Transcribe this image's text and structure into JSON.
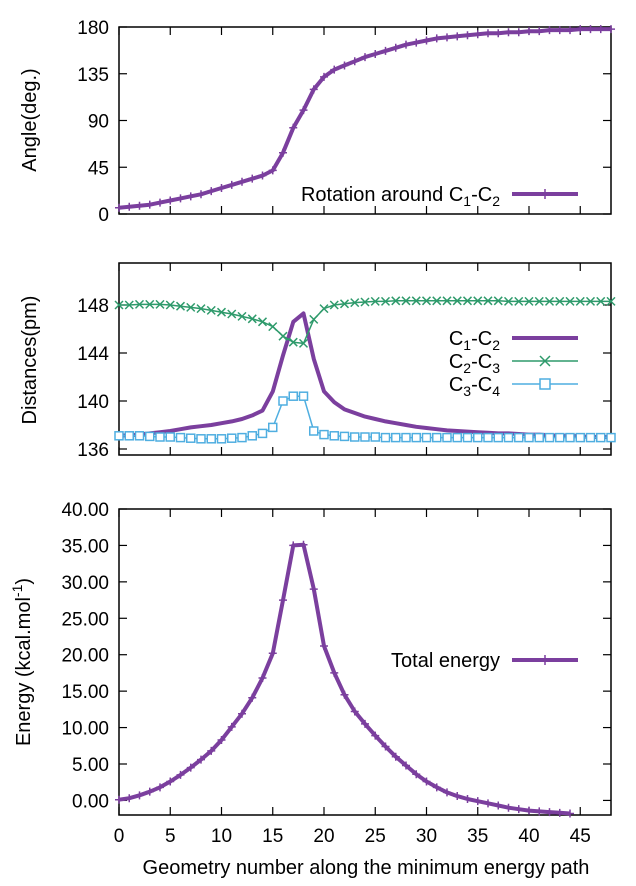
{
  "figure": {
    "xlabel": "Geometry number along the minimum energy path"
  },
  "chart_data": [
    {
      "type": "line",
      "ylabel": "Angle(deg.)",
      "xlim": [
        0,
        48
      ],
      "ylim": [
        0,
        180
      ],
      "xticks": [
        0,
        5,
        10,
        15,
        20,
        25,
        30,
        35,
        40,
        45
      ],
      "yticks": [
        0,
        45,
        90,
        135,
        180
      ],
      "ytick_labels": [
        "0",
        "45",
        "90",
        "135",
        "180"
      ],
      "grid": false,
      "legend_position": "bottom-right",
      "series": [
        {
          "name_main": "Rotation around C",
          "name_sub1": "1",
          "name_mid": "-C",
          "name_sub2": "2",
          "color": "#7b3f9e",
          "marker": "plus",
          "x": [
            0,
            1,
            2,
            3,
            4,
            5,
            6,
            7,
            8,
            9,
            10,
            11,
            12,
            13,
            14,
            15,
            16,
            17,
            18,
            19,
            20,
            21,
            22,
            23,
            24,
            25,
            26,
            27,
            28,
            29,
            30,
            31,
            32,
            33,
            34,
            35,
            36,
            37,
            38,
            39,
            40,
            41,
            42,
            43,
            44,
            45,
            46,
            47,
            48
          ],
          "values": [
            6,
            7,
            8,
            9,
            11,
            13,
            15,
            17,
            19,
            22,
            25,
            28,
            31,
            34,
            37,
            42,
            59,
            83,
            100,
            120,
            132,
            139,
            143,
            147,
            151,
            154,
            157,
            160,
            163,
            165,
            167,
            169,
            170,
            171,
            172,
            173,
            174,
            174,
            175,
            175,
            176,
            176,
            177,
            177,
            177,
            178,
            178,
            178,
            178
          ]
        }
      ]
    },
    {
      "type": "line",
      "ylabel": "Distances(pm)",
      "xlim": [
        0,
        48
      ],
      "ylim": [
        135.5,
        151.5
      ],
      "xticks": [
        0,
        5,
        10,
        15,
        20,
        25,
        30,
        35,
        40,
        45
      ],
      "yticks": [
        136,
        140,
        144,
        148
      ],
      "ytick_labels": [
        "136",
        "140",
        "144",
        "148"
      ],
      "grid": false,
      "legend_position": "right",
      "series": [
        {
          "name_main": "C",
          "name_sub1": "1",
          "name_mid": "-C",
          "name_sub2": "2",
          "color": "#7b3f9e",
          "marker": "none",
          "width": 4,
          "x": [
            0,
            1,
            2,
            3,
            4,
            5,
            6,
            7,
            8,
            9,
            10,
            11,
            12,
            13,
            14,
            15,
            16,
            17,
            18,
            19,
            20,
            21,
            22,
            23,
            24,
            25,
            26,
            27,
            28,
            29,
            30,
            31,
            32,
            33,
            34,
            35,
            36,
            37,
            38,
            39,
            40,
            41,
            42,
            43,
            44,
            45,
            46,
            47,
            48
          ],
          "values": [
            137.1,
            137.15,
            137.2,
            137.3,
            137.4,
            137.5,
            137.65,
            137.8,
            137.9,
            138.0,
            138.15,
            138.3,
            138.5,
            138.8,
            139.2,
            140.8,
            143.8,
            146.6,
            147.3,
            143.5,
            140.8,
            139.9,
            139.3,
            139.0,
            138.7,
            138.5,
            138.3,
            138.15,
            138.0,
            137.85,
            137.75,
            137.65,
            137.55,
            137.5,
            137.45,
            137.4,
            137.35,
            137.3,
            137.3,
            137.25,
            137.2,
            137.2,
            137.15,
            137.1,
            137.1,
            137.05,
            137.0,
            137.0,
            137.0
          ]
        },
        {
          "name_main": "C",
          "name_sub1": "2",
          "name_mid": "-C",
          "name_sub2": "3",
          "color": "#2e9a6b",
          "marker": "x",
          "width": 1.5,
          "x": [
            0,
            1,
            2,
            3,
            4,
            5,
            6,
            7,
            8,
            9,
            10,
            11,
            12,
            13,
            14,
            15,
            16,
            17,
            18,
            19,
            20,
            21,
            22,
            23,
            24,
            25,
            26,
            27,
            28,
            29,
            30,
            31,
            32,
            33,
            34,
            35,
            36,
            37,
            38,
            39,
            40,
            41,
            42,
            43,
            44,
            45,
            46,
            47,
            48
          ],
          "values": [
            148.0,
            148.0,
            148.05,
            148.05,
            148.05,
            148.0,
            147.9,
            147.8,
            147.7,
            147.55,
            147.4,
            147.25,
            147.05,
            146.85,
            146.6,
            146.2,
            145.4,
            144.9,
            144.8,
            146.8,
            147.7,
            148.0,
            148.1,
            148.2,
            148.25,
            148.3,
            148.3,
            148.35,
            148.35,
            148.35,
            148.35,
            148.35,
            148.35,
            148.35,
            148.35,
            148.35,
            148.35,
            148.35,
            148.3,
            148.3,
            148.3,
            148.3,
            148.3,
            148.3,
            148.3,
            148.3,
            148.3,
            148.3,
            148.3
          ]
        },
        {
          "name_main": "C",
          "name_sub1": "3",
          "name_mid": "-C",
          "name_sub2": "4",
          "color": "#4faee0",
          "marker": "square",
          "width": 1.5,
          "x": [
            0,
            1,
            2,
            3,
            4,
            5,
            6,
            7,
            8,
            9,
            10,
            11,
            12,
            13,
            14,
            15,
            16,
            17,
            18,
            19,
            20,
            21,
            22,
            23,
            24,
            25,
            26,
            27,
            28,
            29,
            30,
            31,
            32,
            33,
            34,
            35,
            36,
            37,
            38,
            39,
            40,
            41,
            42,
            43,
            44,
            45,
            46,
            47,
            48
          ],
          "values": [
            137.1,
            137.1,
            137.1,
            137.05,
            137.0,
            137.0,
            136.95,
            136.9,
            136.85,
            136.85,
            136.85,
            136.9,
            136.95,
            137.1,
            137.3,
            137.8,
            140.0,
            140.4,
            140.4,
            137.5,
            137.2,
            137.1,
            137.05,
            137.0,
            137.0,
            137.0,
            136.95,
            136.95,
            136.95,
            136.95,
            136.95,
            136.95,
            136.95,
            136.95,
            136.95,
            136.95,
            136.95,
            136.95,
            136.95,
            136.95,
            136.95,
            136.95,
            136.95,
            136.95,
            136.95,
            136.95,
            136.95,
            136.95,
            136.95
          ]
        }
      ]
    },
    {
      "type": "line",
      "ylabel_main": "Energy (kcal.mol",
      "ylabel_sup": "-1",
      "ylabel_end": ")",
      "xlim": [
        0,
        48
      ],
      "ylim": [
        -2,
        40
      ],
      "xticks": [
        0,
        5,
        10,
        15,
        20,
        25,
        30,
        35,
        40,
        45
      ],
      "xtick_labels": [
        "0",
        "5",
        "10",
        "15",
        "20",
        "25",
        "30",
        "35",
        "40",
        "45"
      ],
      "yticks": [
        0,
        5,
        10,
        15,
        20,
        25,
        30,
        35,
        40
      ],
      "ytick_labels": [
        "0.00",
        "5.00",
        "10.00",
        "15.00",
        "20.00",
        "25.00",
        "30.00",
        "35.00",
        "40.00"
      ],
      "grid": false,
      "legend_position": "right",
      "series": [
        {
          "name": "Total energy",
          "color": "#7b3f9e",
          "marker": "plus",
          "x": [
            0,
            1,
            2,
            3,
            4,
            5,
            6,
            7,
            8,
            9,
            10,
            11,
            12,
            13,
            14,
            15,
            16,
            17,
            18,
            19,
            20,
            21,
            22,
            23,
            24,
            25,
            26,
            27,
            28,
            29,
            30,
            31,
            32,
            33,
            34,
            35,
            36,
            37,
            38,
            39,
            40,
            41,
            42,
            43,
            44
          ],
          "values": [
            0.1,
            0.3,
            0.7,
            1.2,
            1.8,
            2.6,
            3.5,
            4.5,
            5.6,
            6.8,
            8.3,
            10.1,
            11.9,
            14.1,
            16.8,
            20.2,
            27.5,
            35.0,
            35.1,
            29.0,
            21.2,
            17.5,
            14.5,
            12.2,
            10.5,
            8.9,
            7.4,
            6.0,
            4.8,
            3.6,
            2.6,
            1.8,
            1.1,
            0.6,
            0.2,
            -0.1,
            -0.4,
            -0.7,
            -1.0,
            -1.2,
            -1.4,
            -1.5,
            -1.6,
            -1.7,
            -1.8
          ]
        }
      ]
    }
  ]
}
